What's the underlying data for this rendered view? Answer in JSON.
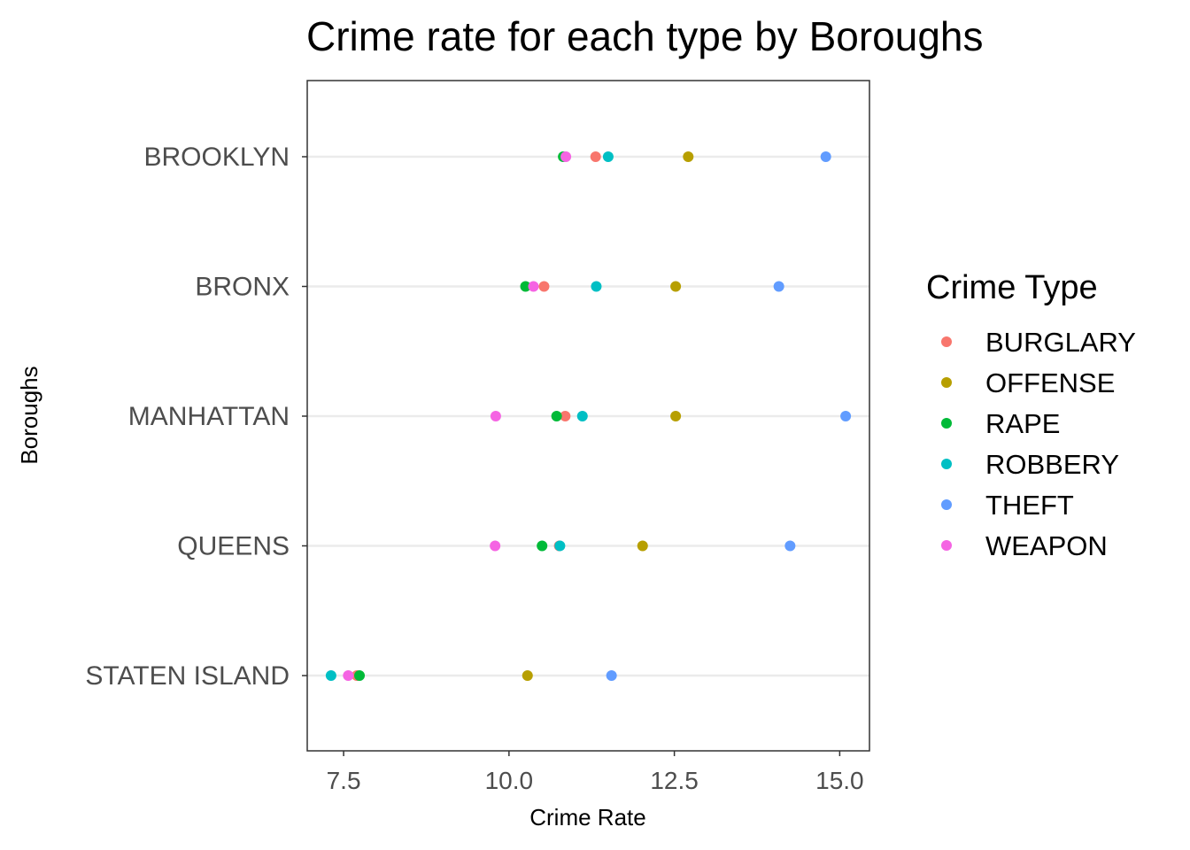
{
  "chart_data": {
    "type": "scatter",
    "title": "Crime rate for each type by Boroughs",
    "xlabel": "Crime Rate",
    "ylabel": "Boroughs",
    "xlim": [
      6.95,
      15.45
    ],
    "xticks": [
      7.5,
      10.0,
      12.5,
      15.0
    ],
    "xtick_labels": [
      "7.5",
      "10.0",
      "12.5",
      "15.0"
    ],
    "categories": [
      "BROOKLYN",
      "BRONX",
      "MANHATTAN",
      "QUEENS",
      "STATEN ISLAND"
    ],
    "grid": "horizontal",
    "legend": {
      "title": "Crime Type",
      "placement": "right"
    },
    "series": [
      {
        "name": "BURGLARY",
        "color": "#F8766D",
        "values": [
          11.31,
          10.53,
          10.85,
          10.76,
          7.7
        ]
      },
      {
        "name": "OFFENSE",
        "color": "#B79F00",
        "values": [
          12.71,
          12.52,
          12.52,
          12.02,
          10.28
        ]
      },
      {
        "name": "RAPE",
        "color": "#00BA38",
        "values": [
          10.82,
          10.25,
          10.72,
          10.5,
          7.74
        ]
      },
      {
        "name": "ROBBERY",
        "color": "#00BFC4",
        "values": [
          11.5,
          11.32,
          11.11,
          10.77,
          7.31
        ]
      },
      {
        "name": "THEFT",
        "color": "#619CFF",
        "values": [
          14.79,
          14.08,
          15.09,
          14.25,
          11.55
        ]
      },
      {
        "name": "WEAPON",
        "color": "#F564E3",
        "values": [
          10.86,
          10.37,
          9.8,
          9.79,
          7.57
        ]
      }
    ]
  }
}
